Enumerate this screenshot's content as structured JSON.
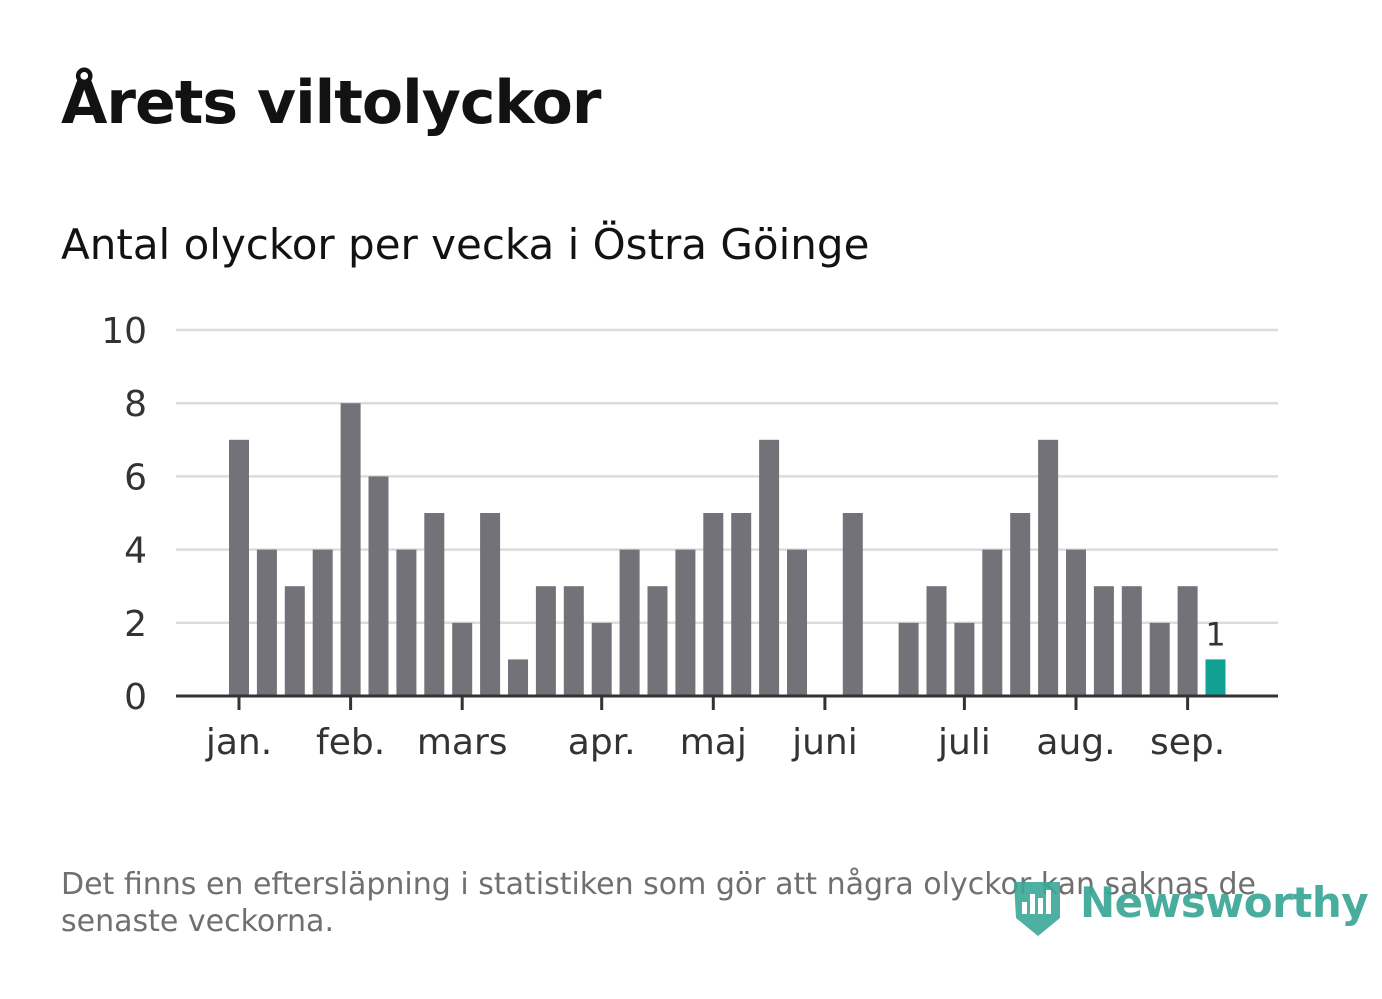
{
  "header": {
    "title": "Årets viltolyckor",
    "subtitle": "Antal olyckor per vecka i Östra Göinge"
  },
  "footer": {
    "note": "Det finns en eftersläpning i statistiken som gör att några olyckor kan saknas de senaste veckorna.",
    "brand": "Newsworthy"
  },
  "colors": {
    "bar": "#737278",
    "highlight": "#12a092",
    "grid": "#dcdcdc",
    "axis": "#333333",
    "brand": "#3aa796"
  },
  "chart_data": {
    "type": "bar",
    "title": "Årets viltolyckor",
    "subtitle": "Antal olyckor per vecka i Östra Göinge",
    "ylim": [
      0,
      10
    ],
    "yticks": [
      "0",
      "2",
      "4",
      "6",
      "8",
      "10"
    ],
    "grid": true,
    "values": [
      7,
      4,
      3,
      4,
      8,
      6,
      4,
      5,
      2,
      5,
      1,
      3,
      3,
      2,
      4,
      3,
      4,
      5,
      5,
      7,
      4,
      0,
      5,
      0,
      2,
      3,
      2,
      4,
      5,
      7,
      4,
      3,
      3,
      2,
      3,
      1
    ],
    "month_labels": [
      {
        "label": "jan.",
        "week": 1
      },
      {
        "label": "feb.",
        "week": 5
      },
      {
        "label": "mars",
        "week": 9
      },
      {
        "label": "apr.",
        "week": 14
      },
      {
        "label": "maj",
        "week": 18
      },
      {
        "label": "juni",
        "week": 22
      },
      {
        "label": "juli",
        "week": 27
      },
      {
        "label": "aug.",
        "week": 31
      },
      {
        "label": "sep.",
        "week": 35
      }
    ],
    "highlight_last": true,
    "last_value_label": "1"
  }
}
